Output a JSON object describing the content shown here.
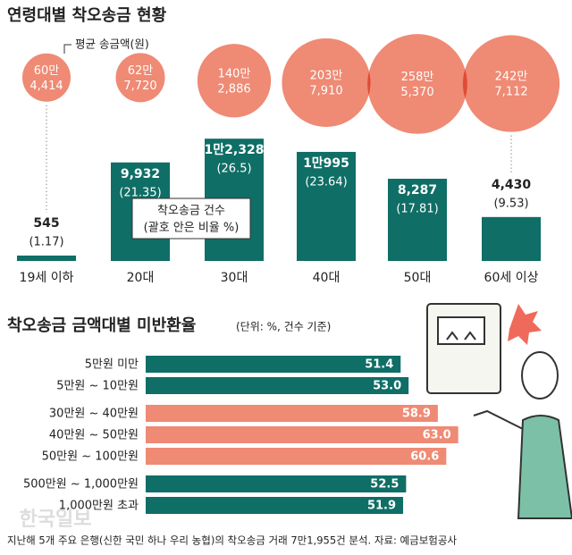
{
  "charts": [
    {
      "chart_data": {
        "type": "bubble-bar",
        "title": "연령대별 착오송금 현황",
        "categories": [
          "19세 이하",
          "20대",
          "30대",
          "40대",
          "50대",
          "60세 이상"
        ],
        "series": [
          {
            "name": "착오송금 건수",
            "color": "#0f6e66",
            "values": [
              545,
              9932,
              12328,
              10995,
              8287,
              4430
            ],
            "value_labels": [
              "545",
              "9,932",
              "1만2,328",
              "1만995",
              "8,287",
              "4,430"
            ]
          },
          {
            "name": "(괄호 안은 비율 %)",
            "values": [
              1.17,
              21.35,
              26.5,
              23.64,
              17.81,
              9.53
            ],
            "value_labels": [
              "(1.17)",
              "(21.35)",
              "(26.5)",
              "(23.64)",
              "(17.81)",
              "(9.53)"
            ]
          },
          {
            "name": "평균 송금액(원)",
            "color": "#ef8a74",
            "values": [
              604414,
              627720,
              1402886,
              2037910,
              2585370,
              2427112
            ],
            "value_labels": [
              "60만 4,414",
              "62만 7,720",
              "140만 2,886",
              "203만 7,910",
              "258만 5,370",
              "242만 7,112"
            ]
          }
        ]
      }
    },
    {
      "chart_data": {
        "type": "hbar",
        "title": "착오송금 금액대별 미반환율",
        "subtitle": "(단위: %, 건수 기준)",
        "categories": [
          "5만원 미만",
          "5만원 ~ 10만원",
          "30만원 ~ 40만원",
          "40만원 ~ 50만원",
          "50만원 ~ 100만원",
          "500만원 ~ 1,000만원",
          "1,000만원 초과"
        ],
        "values": [
          51.4,
          53.0,
          58.9,
          63.0,
          60.6,
          52.5,
          51.9
        ],
        "value_labels": [
          "51.4",
          "53.0",
          "58.9",
          "63.0",
          "60.6",
          "52.5",
          "51.9"
        ],
        "colors": [
          "#0f6e66",
          "#0f6e66",
          "#ef8a74",
          "#ef8a74",
          "#ef8a74",
          "#0f6e66",
          "#0f6e66"
        ]
      }
    }
  ],
  "source": "지난해 5개 주요 은행(신한 국민 하나 우리 농협)의 착오송금 거래 7만1,955건 분석. 자료: 예금보험공사",
  "watermark": "한국일보"
}
